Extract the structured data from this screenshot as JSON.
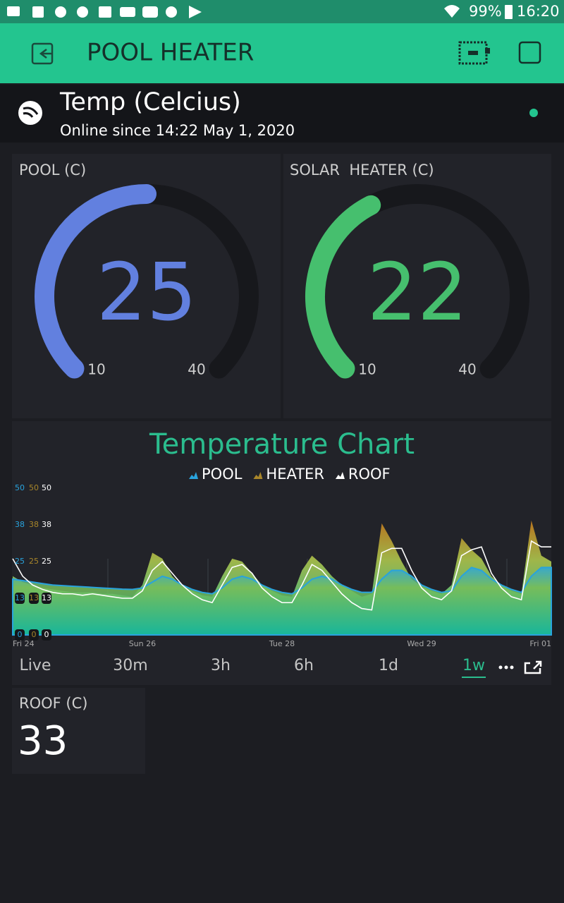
{
  "status_bar": {
    "battery": "99%",
    "time": "16:20"
  },
  "header": {
    "title": "POOL HEATER"
  },
  "device": {
    "name": "Temp (Celcius)",
    "status": "Online since 14:22 May 1, 2020"
  },
  "gauges": [
    {
      "label": "POOL (C)",
      "value": 25,
      "min": 10,
      "max": 40,
      "color": "#6280df"
    },
    {
      "label": "SOLAR  HEATER (C)",
      "value": 22,
      "min": 10,
      "max": 40,
      "color": "#46bf6e"
    }
  ],
  "chart": {
    "type": "area",
    "title": "Temperature Chart",
    "categories": [
      "Fri 24",
      null,
      null,
      null,
      null,
      null,
      null,
      null,
      null,
      null,
      null,
      null,
      null,
      "Sun 26",
      null,
      null,
      null,
      null,
      null,
      null,
      null,
      null,
      null,
      null,
      null,
      null,
      null,
      "Tue 28",
      null,
      null,
      null,
      null,
      null,
      null,
      null,
      null,
      null,
      null,
      null,
      null,
      null,
      "Wed 29",
      null,
      null,
      null,
      null,
      null,
      null,
      null,
      null,
      null,
      null,
      null,
      null,
      "Fri 01"
    ],
    "ylim": [
      0,
      50
    ],
    "yticks": [
      0,
      {
        "value": 12.5,
        "label": "13"
      },
      25,
      {
        "value": 37.5,
        "label": "38"
      },
      50
    ],
    "series": [
      {
        "name": "POOL",
        "color": "#29a3dd",
        "values": [
          19,
          18.5,
          18,
          17.5,
          17,
          16.8,
          16.6,
          16.4,
          16.2,
          16,
          15.8,
          15.6,
          15.5,
          16,
          18,
          20,
          19,
          17,
          15.5,
          14.5,
          14,
          16,
          19,
          20,
          19,
          17,
          15.5,
          14.5,
          14,
          16,
          19,
          20,
          19,
          17,
          15.5,
          14.5,
          14.5,
          19,
          22,
          22,
          20,
          17,
          15.5,
          14.5,
          15,
          20,
          23,
          22,
          19,
          17,
          15.5,
          14.5,
          20,
          23,
          23
        ]
      },
      {
        "name": "HEATER",
        "color": "#a8862a",
        "values": [
          20,
          18,
          17,
          16,
          15.5,
          15,
          14.5,
          14.5,
          14.5,
          14,
          14,
          13.5,
          13,
          17,
          28,
          26,
          20,
          16.5,
          15,
          13.5,
          13,
          20,
          26,
          25,
          21,
          17,
          15,
          13.5,
          13,
          22,
          27,
          24,
          20,
          17,
          15,
          13,
          14,
          38,
          32,
          25,
          19,
          16.5,
          15,
          14,
          17,
          33,
          29,
          26,
          20,
          17,
          15,
          14,
          39,
          27,
          25
        ]
      },
      {
        "name": "ROOF",
        "color": "#ffffff",
        "values": [
          26,
          20,
          17,
          15.5,
          14.5,
          14,
          14,
          13.5,
          14,
          13.5,
          13,
          12.5,
          12.5,
          15,
          22,
          25,
          21,
          17,
          14,
          12,
          11,
          17,
          23,
          24,
          21,
          16,
          13,
          11,
          11,
          17,
          24,
          22,
          18,
          14,
          11,
          9,
          8.5,
          28,
          29.5,
          29.5,
          22,
          16,
          13,
          12,
          15,
          27,
          29,
          30,
          21,
          16,
          13,
          12,
          32,
          30,
          30
        ]
      }
    ]
  },
  "periods": {
    "options": [
      "Live",
      "30m",
      "3h",
      "6h",
      "1d",
      "1w"
    ],
    "selected": 5
  },
  "roof": {
    "label": "ROOF (C)",
    "value": 33
  }
}
